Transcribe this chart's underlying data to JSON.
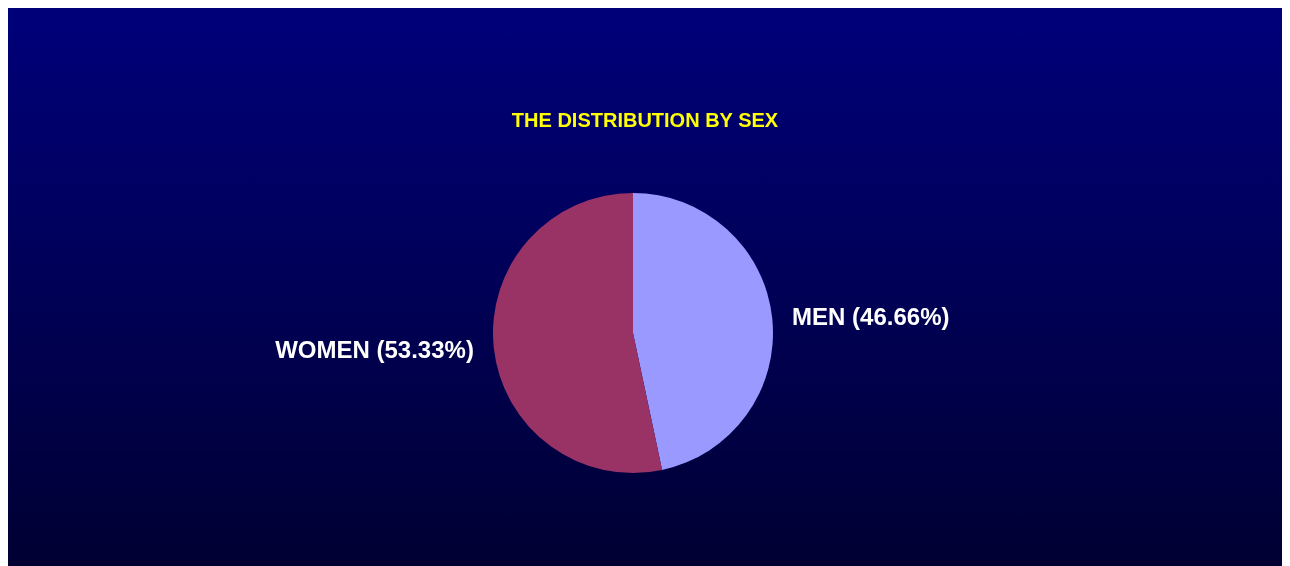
{
  "chart_data": {
    "type": "pie",
    "title": "THE DISTRIBUTION BY SEX",
    "categories": [
      "MEN",
      "WOMEN"
    ],
    "values": [
      46.66,
      53.33
    ],
    "value_labels": [
      "(46.66%)",
      "(53.33%)"
    ],
    "colors": [
      "#9999ff",
      "#993366"
    ],
    "legend": false
  }
}
